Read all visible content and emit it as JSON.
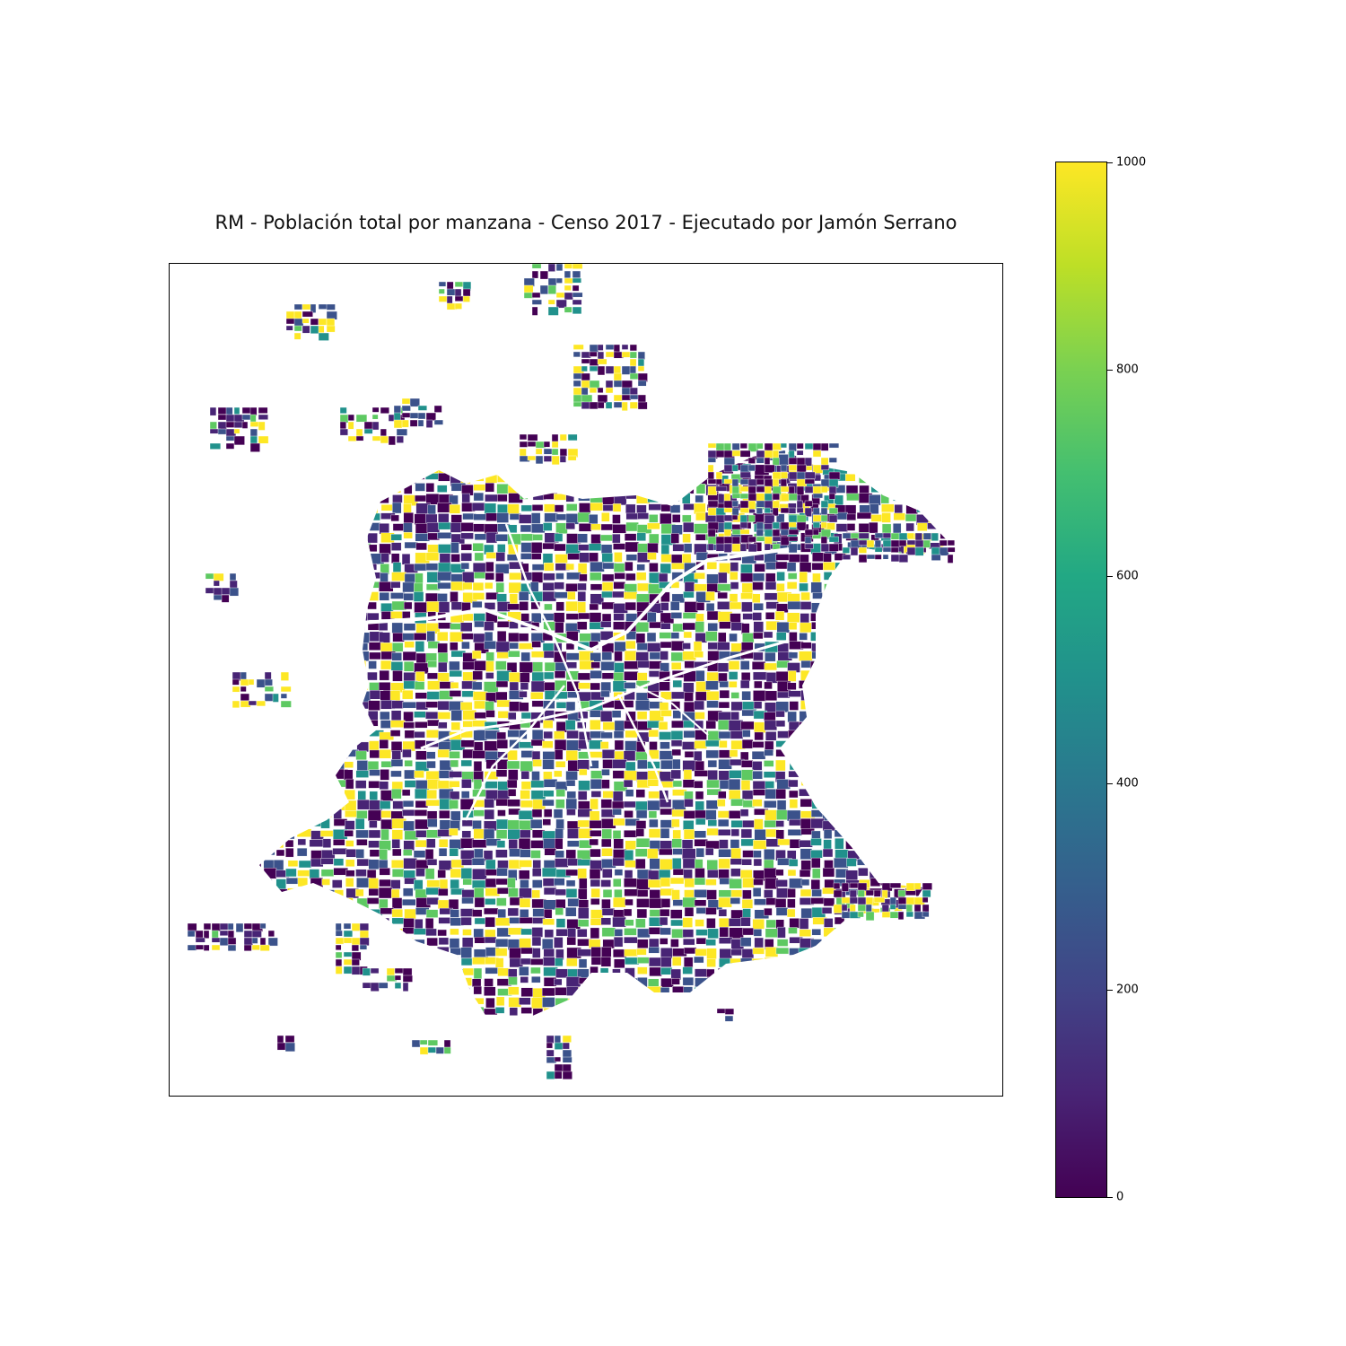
{
  "figure": {
    "title": "RM - Población total por manzana - Censo 2017 - Ejecutado por Jamón Serrano"
  },
  "map": {
    "colormap": "viridis",
    "value_range": [
      0,
      1000
    ],
    "colorbar": {
      "orientation": "vertical",
      "placement": "right",
      "ticks": [
        {
          "value": 0,
          "label": "0"
        },
        {
          "value": 200,
          "label": "200"
        },
        {
          "value": 400,
          "label": "400"
        },
        {
          "value": 600,
          "label": "600"
        },
        {
          "value": 800,
          "label": "800"
        },
        {
          "value": 1000,
          "label": "1000"
        }
      ]
    },
    "colors": {
      "low": "#440154",
      "low_mid": "#3b528b",
      "mid": "#21918c",
      "high_mid": "#5ec962",
      "high": "#fde725"
    }
  }
}
